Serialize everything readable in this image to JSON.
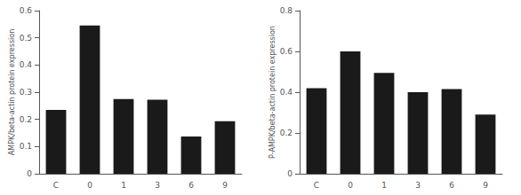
{
  "chart_data": [
    {
      "type": "bar",
      "categories": [
        "C",
        "0",
        "1",
        "3",
        "6",
        "9"
      ],
      "values": [
        0.235,
        0.545,
        0.275,
        0.272,
        0.137,
        0.193
      ],
      "ylabel": "AMPK/beta-actin protein expression",
      "ylim": [
        0,
        0.6
      ],
      "yticks": [
        0,
        0.1,
        0.2,
        0.3,
        0.4,
        0.5,
        0.6
      ],
      "color": "#1a1a1a",
      "grid": false
    },
    {
      "type": "bar",
      "categories": [
        "C",
        "0",
        "1",
        "3",
        "6",
        "9"
      ],
      "values": [
        0.42,
        0.6,
        0.495,
        0.4,
        0.415,
        0.29
      ],
      "ylabel": "P-AMPK/beta-actin protein expression",
      "ylim": [
        0,
        0.8
      ],
      "yticks": [
        0,
        0.2,
        0.4,
        0.6,
        0.8
      ],
      "color": "#1a1a1a",
      "grid": false
    }
  ]
}
